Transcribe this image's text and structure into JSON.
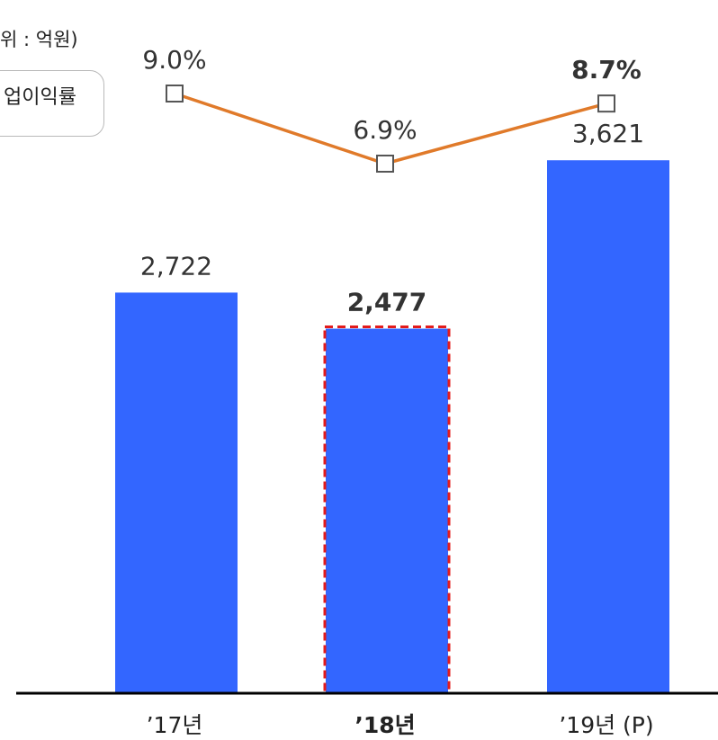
{
  "unit_label": "위 : 억원)",
  "legend_label": "업이익률",
  "colors": {
    "bar": "#3366ff",
    "line": "#e07a2a",
    "highlight": "#e31b1b",
    "axis": "#000000"
  },
  "chart_data": {
    "type": "bar",
    "categories": [
      "’17년",
      "’18년",
      "’19년 (P)"
    ],
    "highlight_index": 1,
    "series": [
      {
        "values": [
          2722,
          2477,
          3621
        ],
        "value_labels": [
          "2,722",
          "2,477",
          "3,621"
        ]
      },
      {
        "name": "업이익률",
        "type": "line",
        "values": [
          9.0,
          6.9,
          8.7
        ],
        "value_labels": [
          "9.0%",
          "6.9%",
          "8.7%"
        ]
      }
    ]
  }
}
